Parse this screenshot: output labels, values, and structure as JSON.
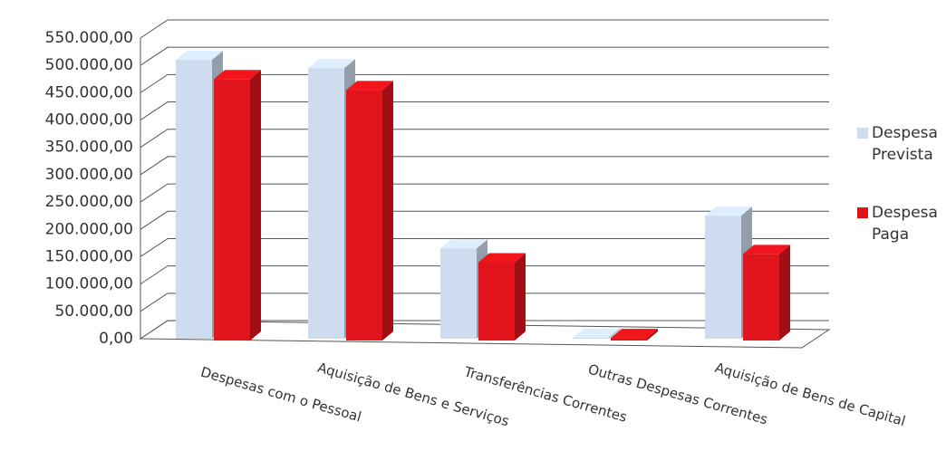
{
  "chart_data": {
    "type": "bar3d",
    "categories": [
      "Despesas com o Pessoal",
      "Aquisição de Bens e Serviços",
      "Transferências Correntes",
      "Outras Despesas Correntes",
      "Aquisição de Bens de Capital"
    ],
    "series": [
      {
        "name": "Despesa Prevista",
        "color": "#cddcee",
        "values": [
          510000,
          495000,
          165000,
          2000,
          225000
        ]
      },
      {
        "name": "Despesa Paga",
        "color": "#e0141a",
        "values": [
          475000,
          455000,
          140000,
          1500,
          155000
        ]
      }
    ],
    "ylim": [
      0,
      550000
    ],
    "yticks": [
      {
        "value": 0,
        "label": "0,00"
      },
      {
        "value": 50000,
        "label": "50.000,00"
      },
      {
        "value": 100000,
        "label": "100.000,00"
      },
      {
        "value": 150000,
        "label": "150.000,00"
      },
      {
        "value": 200000,
        "label": "200.000,00"
      },
      {
        "value": 250000,
        "label": "250.000,00"
      },
      {
        "value": 300000,
        "label": "300.000,00"
      },
      {
        "value": 350000,
        "label": "350.000,00"
      },
      {
        "value": 400000,
        "label": "400.000,00"
      },
      {
        "value": 450000,
        "label": "450.000,00"
      },
      {
        "value": 500000,
        "label": "500.000,00"
      },
      {
        "value": 550000,
        "label": "550.000,00"
      }
    ],
    "grid": true,
    "legend": "right"
  }
}
